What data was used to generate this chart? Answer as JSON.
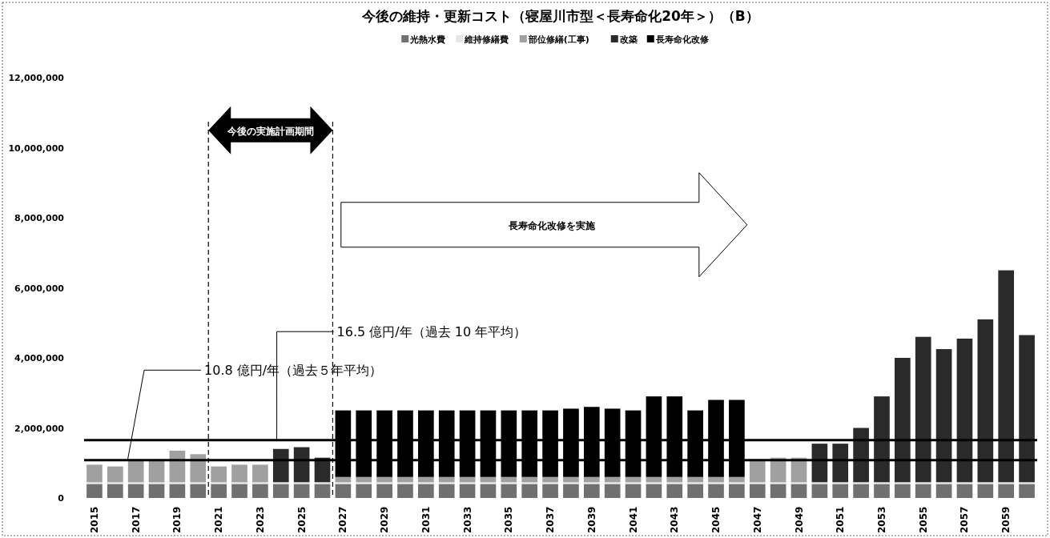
{
  "chart_data": {
    "type": "bar",
    "stacked": true,
    "title": "今後の維持・更新コスト（寝屋川市型＜長寿命化20年＞）（B）",
    "x": [
      2015,
      2016,
      2017,
      2018,
      2019,
      2020,
      2021,
      2022,
      2023,
      2024,
      2025,
      2026,
      2027,
      2028,
      2029,
      2030,
      2031,
      2032,
      2033,
      2034,
      2035,
      2036,
      2037,
      2038,
      2039,
      2040,
      2041,
      2042,
      2043,
      2044,
      2045,
      2046,
      2047,
      2048,
      2049,
      2050,
      2051,
      2052,
      2053,
      2054,
      2055,
      2056,
      2057,
      2058,
      2059,
      2060
    ],
    "xlim": [
      2014.5,
      2060.5
    ],
    "xticks": [
      2015,
      2017,
      2019,
      2021,
      2023,
      2025,
      2027,
      2029,
      2031,
      2033,
      2035,
      2037,
      2039,
      2041,
      2043,
      2045,
      2047,
      2049,
      2051,
      2053,
      2055,
      2057,
      2059
    ],
    "ylim": [
      0,
      12000000
    ],
    "yticks": [
      {
        "value": 0,
        "label": "0"
      },
      {
        "value": 2000000,
        "label": "2,000,000"
      },
      {
        "value": 4000000,
        "label": "4,000,000"
      },
      {
        "value": 6000000,
        "label": "6,000,000"
      },
      {
        "value": 8000000,
        "label": "8,000,000"
      },
      {
        "value": 10000000,
        "label": "10,000,000"
      },
      {
        "value": 12000000,
        "label": "12,000,000"
      }
    ],
    "legend": "top",
    "series": [
      {
        "name": "光熱水費",
        "color": "#707070",
        "values": [
          400000,
          400000,
          400000,
          400000,
          400000,
          400000,
          400000,
          400000,
          400000,
          400000,
          400000,
          400000,
          400000,
          400000,
          400000,
          400000,
          400000,
          400000,
          400000,
          400000,
          400000,
          400000,
          400000,
          400000,
          400000,
          400000,
          400000,
          400000,
          400000,
          400000,
          400000,
          400000,
          400000,
          400000,
          400000,
          400000,
          400000,
          400000,
          400000,
          400000,
          400000,
          400000,
          400000,
          400000,
          400000,
          400000
        ]
      },
      {
        "name": "維持修繕費",
        "color": "#e6e6e6",
        "values": [
          50000,
          50000,
          50000,
          50000,
          50000,
          50000,
          50000,
          50000,
          50000,
          50000,
          50000,
          50000,
          50000,
          50000,
          50000,
          50000,
          50000,
          50000,
          50000,
          50000,
          50000,
          50000,
          50000,
          50000,
          50000,
          50000,
          50000,
          50000,
          50000,
          50000,
          50000,
          50000,
          50000,
          50000,
          50000,
          50000,
          50000,
          50000,
          50000,
          50000,
          50000,
          50000,
          50000,
          50000,
          50000,
          50000
        ]
      },
      {
        "name": "部位修繕(工事)",
        "color": "#a0a0a0",
        "values": [
          500000,
          450000,
          650000,
          650000,
          900000,
          800000,
          450000,
          500000,
          500000,
          null,
          null,
          null,
          150000,
          150000,
          150000,
          150000,
          150000,
          150000,
          150000,
          150000,
          150000,
          150000,
          150000,
          150000,
          150000,
          150000,
          150000,
          150000,
          150000,
          150000,
          150000,
          150000,
          650000,
          700000,
          700000,
          null,
          null,
          null,
          null,
          null,
          null,
          null,
          null,
          null,
          null,
          null
        ]
      },
      {
        "name": "改築",
        "color": "#2a2a2a",
        "values": [
          null,
          null,
          null,
          null,
          null,
          null,
          null,
          null,
          null,
          950000,
          1000000,
          700000,
          null,
          null,
          null,
          null,
          null,
          null,
          null,
          null,
          null,
          null,
          null,
          null,
          null,
          null,
          null,
          null,
          null,
          null,
          null,
          null,
          null,
          null,
          null,
          1100000,
          1100000,
          1550000,
          2450000,
          3550000,
          4150000,
          3800000,
          4100000,
          4650000,
          6050000,
          4200000
        ]
      },
      {
        "name": "長寿命化改修",
        "color": "#000000",
        "values": [
          null,
          null,
          null,
          null,
          null,
          null,
          null,
          null,
          null,
          null,
          null,
          null,
          1900000,
          1900000,
          1900000,
          1900000,
          1900000,
          1900000,
          1900000,
          1900000,
          1900000,
          1900000,
          1900000,
          1950000,
          2000000,
          1950000,
          1900000,
          2300000,
          2300000,
          1900000,
          2200000,
          2200000,
          null,
          null,
          null,
          null,
          null,
          null,
          null,
          null,
          null,
          null,
          null,
          null,
          null,
          null
        ]
      }
    ],
    "ref_lines": [
      {
        "axis": "y",
        "value": 1080000,
        "label": "10.8 億円/年（過去５年平均）",
        "color": "#000000"
      },
      {
        "axis": "y",
        "value": 1650000,
        "label": "16.5 億円/年（過去 10 年平均）",
        "color": "#000000"
      },
      {
        "axis": "x",
        "value": 2020.5,
        "line_style": "dashed",
        "color": "#000000"
      },
      {
        "axis": "x",
        "value": 2026.5,
        "line_style": "dashed",
        "color": "#000000"
      }
    ],
    "annotations": [
      "今後の実施計画期間",
      "長寿命化改修を実施"
    ]
  }
}
